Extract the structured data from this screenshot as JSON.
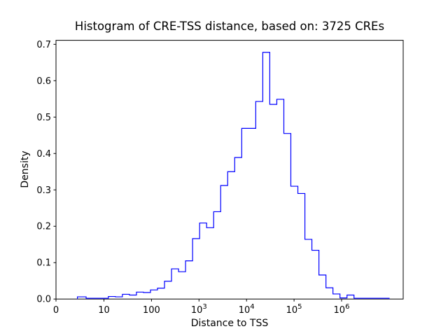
{
  "figure": {
    "title": "Histogram of CRE-TSS distance, based on: 3725 CREs",
    "xlabel": "Distance to TSS",
    "ylabel": "Density",
    "background_color": "#ffffff",
    "line_color": "#0000ff",
    "spine_color": "#000000"
  },
  "chart_data": {
    "type": "bar",
    "style": "step-histogram-outline",
    "title": "Histogram of CRE-TSS distance, based on: 3725 CREs",
    "xlabel": "Distance to TSS",
    "ylabel": "Density",
    "cre_count": 3725,
    "x_scale": "symlog",
    "grid": false,
    "legend": false,
    "ylim": [
      0,
      0.711
    ],
    "y_ticks": [
      0.0,
      0.1,
      0.2,
      0.3,
      0.4,
      0.5,
      0.6,
      0.7
    ],
    "x_ticks": [
      {
        "value": 0,
        "label": "0"
      },
      {
        "value": 10,
        "label": "10"
      },
      {
        "value": 100,
        "label": "100"
      },
      {
        "value": 1000,
        "label": "10",
        "exp": "3"
      },
      {
        "value": 10000,
        "label": "10",
        "exp": "4"
      },
      {
        "value": 100000,
        "label": "10",
        "exp": "5"
      },
      {
        "value": 1000000,
        "label": "10",
        "exp": "6"
      }
    ],
    "bin_edges_log10": [
      0.65,
      0.798,
      0.945,
      1.093,
      1.241,
      1.388,
      1.536,
      1.684,
      1.831,
      1.979,
      2.127,
      2.274,
      2.422,
      2.57,
      2.717,
      2.865,
      3.013,
      3.16,
      3.308,
      3.456,
      3.603,
      3.751,
      3.899,
      4.046,
      4.194,
      4.342,
      4.489,
      4.637,
      4.785,
      4.932,
      5.08,
      5.228,
      5.375,
      5.523,
      5.671,
      5.818,
      5.966,
      6.114,
      6.261,
      6.409,
      6.557,
      6.704,
      6.852,
      7.0
    ],
    "densities": [
      0.006,
      0.002,
      0.002,
      0.007,
      0.006,
      0.013,
      0.011,
      0.019,
      0.018,
      0.025,
      0.03,
      0.049,
      0.083,
      0.075,
      0.105,
      0.166,
      0.209,
      0.196,
      0.24,
      0.312,
      0.35,
      0.389,
      0.469,
      0.469,
      0.543,
      0.678,
      0.535,
      0.549,
      0.455,
      0.31,
      0.29,
      0.164,
      0.134,
      0.066,
      0.031,
      0.014,
      0.003,
      0.011,
      0.002,
      0.002,
      0.002,
      0.002,
      0.002
    ]
  }
}
